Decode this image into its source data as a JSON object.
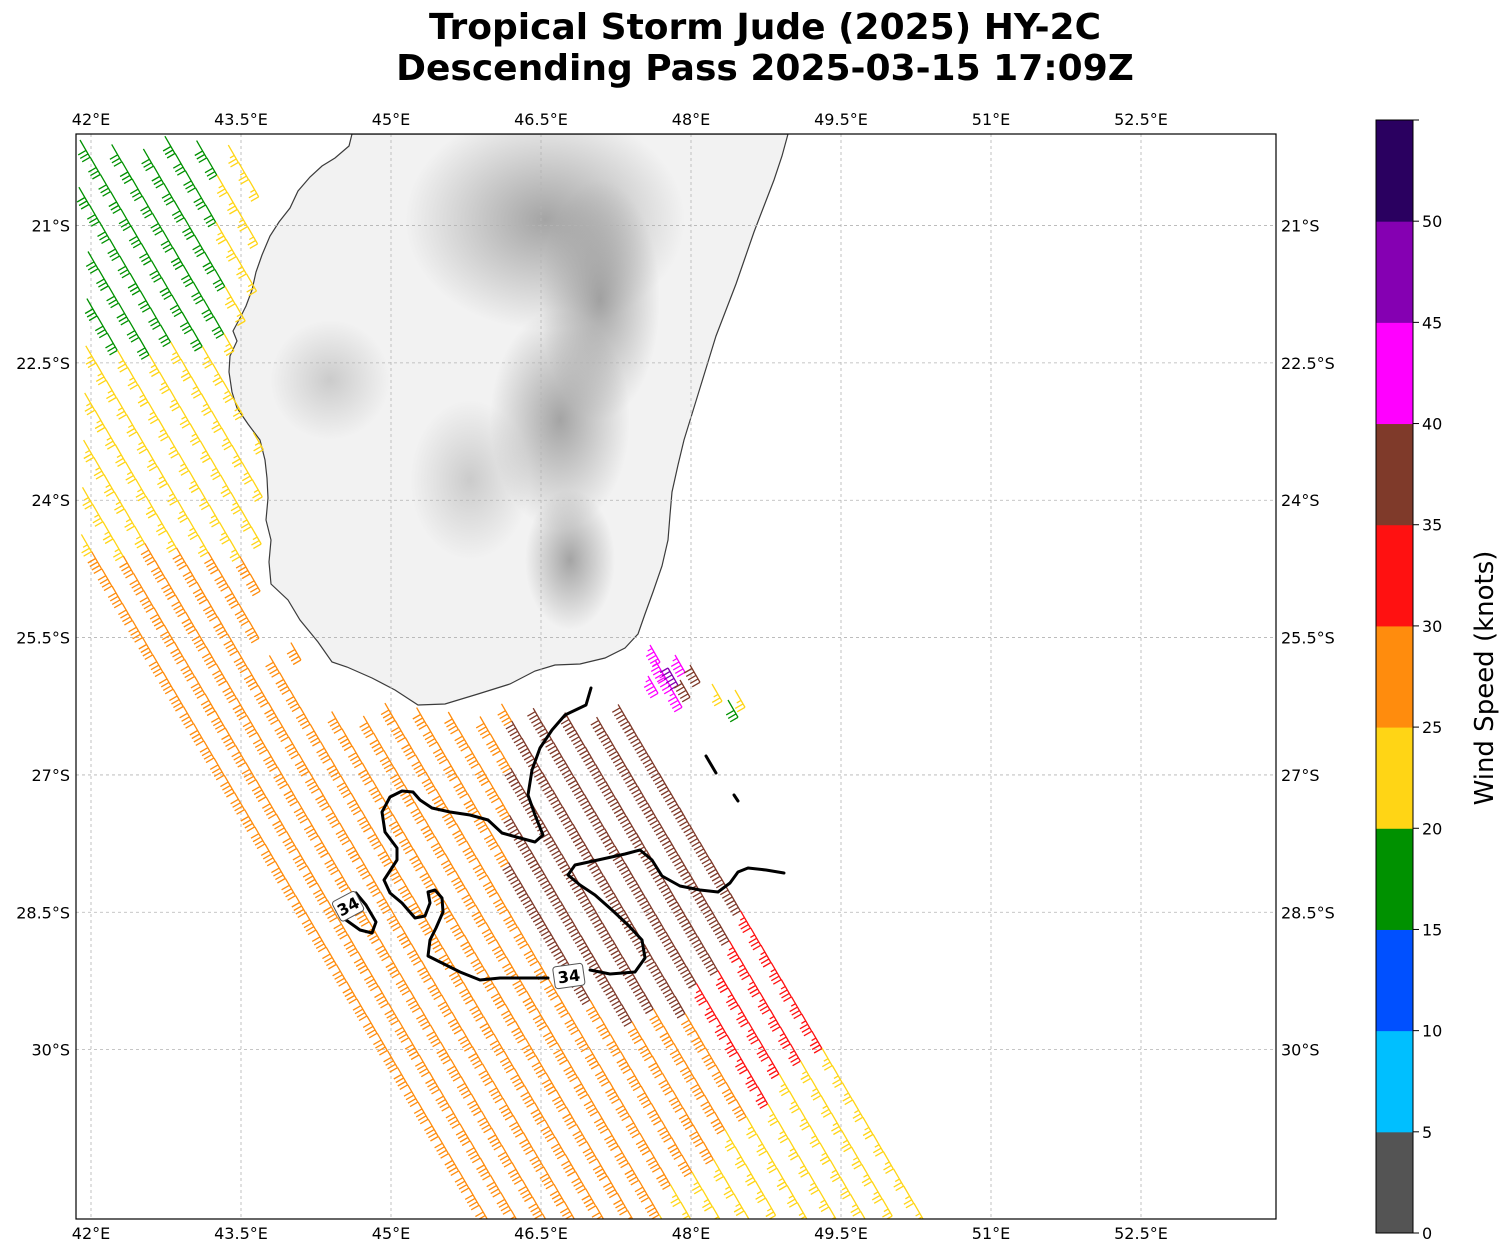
{
  "title": {
    "line1": "Tropical Storm Jude (2025) HY-2C",
    "line2": "Descending Pass 2025-03-15 17:09Z"
  },
  "map": {
    "lon_min": 41.85,
    "lon_max": 53.85,
    "lat_min": -31.85,
    "lat_max": -20.0,
    "lon_ticks": [
      42,
      43.5,
      45,
      46.5,
      48,
      49.5,
      51,
      52.5
    ],
    "lon_tick_labels": [
      "42°E",
      "43.5°E",
      "45°E",
      "46.5°E",
      "48°E",
      "49.5°E",
      "51°E",
      "52.5°E"
    ],
    "lat_ticks": [
      -21,
      -22.5,
      -24,
      -25.5,
      -27,
      -28.5,
      -30
    ],
    "lat_tick_labels": [
      "21°S",
      "22.5°S",
      "24°S",
      "25.5°S",
      "27°S",
      "28.5°S",
      "30°S"
    ],
    "gridlines": true,
    "land": "Madagascar (grayscale terrain shading)",
    "contour_label": "34",
    "contour_label_count": 2
  },
  "colorbar": {
    "label": "Wind Speed (knots)",
    "tick_labels": [
      "0",
      "5",
      "10",
      "15",
      "20",
      "25",
      "30",
      "35",
      "40",
      "45",
      "50"
    ],
    "bins": [
      {
        "min": 0,
        "max": 5,
        "color": "#545454"
      },
      {
        "min": 5,
        "max": 10,
        "color": "#00bfff"
      },
      {
        "min": 10,
        "max": 15,
        "color": "#0050ff"
      },
      {
        "min": 15,
        "max": 20,
        "color": "#009100"
      },
      {
        "min": 20,
        "max": 25,
        "color": "#ffd515"
      },
      {
        "min": 25,
        "max": 30,
        "color": "#ff8c0d"
      },
      {
        "min": 30,
        "max": 35,
        "color": "#ff1111"
      },
      {
        "min": 35,
        "max": 40,
        "color": "#7f3a2a"
      },
      {
        "min": 40,
        "max": 45,
        "color": "#ff00ff"
      },
      {
        "min": 45,
        "max": 50,
        "color": "#8500b2"
      },
      {
        "min": 50,
        "max": 55,
        "color": "#2a0060"
      }
    ]
  }
}
